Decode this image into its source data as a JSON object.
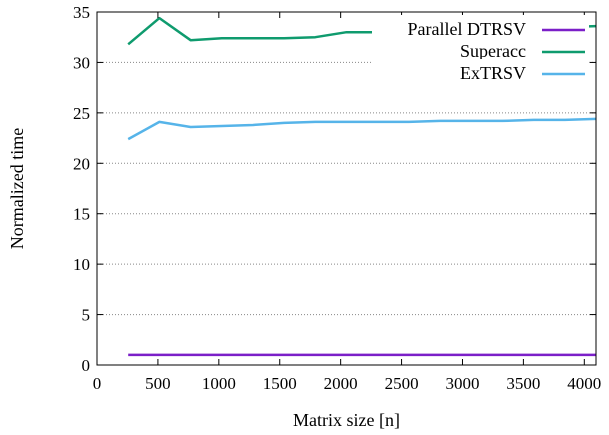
{
  "chart_data": {
    "type": "line",
    "xlabel": "Matrix size [n]",
    "ylabel": "Normalized time",
    "xlim": [
      0,
      4096
    ],
    "ylim": [
      0,
      35
    ],
    "x_ticks": [
      0,
      500,
      1000,
      1500,
      2000,
      2500,
      3000,
      3500,
      4000
    ],
    "y_ticks": [
      0,
      5,
      10,
      15,
      20,
      25,
      30,
      35
    ],
    "grid": "horizontal dotted",
    "legend_position": "top-right",
    "x": [
      256,
      512,
      768,
      1024,
      1280,
      1536,
      1792,
      2048,
      2304,
      2560,
      2816,
      3072,
      3328,
      3584,
      3840,
      4096
    ],
    "series": [
      {
        "name": "Parallel DTRSV",
        "color": "#7b1fc8",
        "values": [
          1,
          1,
          1,
          1,
          1,
          1,
          1,
          1,
          1,
          1,
          1,
          1,
          1,
          1,
          1,
          1
        ]
      },
      {
        "name": "Superacc",
        "color": "#0f9b6e",
        "values": [
          31.8,
          34.4,
          32.2,
          32.4,
          32.4,
          32.4,
          32.5,
          33.0,
          33.0,
          33.1,
          33.1,
          33.2,
          33.3,
          33.4,
          33.5,
          33.6
        ]
      },
      {
        "name": "ExTRSV",
        "color": "#56b4e9",
        "values": [
          22.4,
          24.1,
          23.6,
          23.7,
          23.8,
          24.0,
          24.1,
          24.1,
          24.1,
          24.1,
          24.2,
          24.2,
          24.2,
          24.3,
          24.3,
          24.4
        ]
      }
    ]
  }
}
